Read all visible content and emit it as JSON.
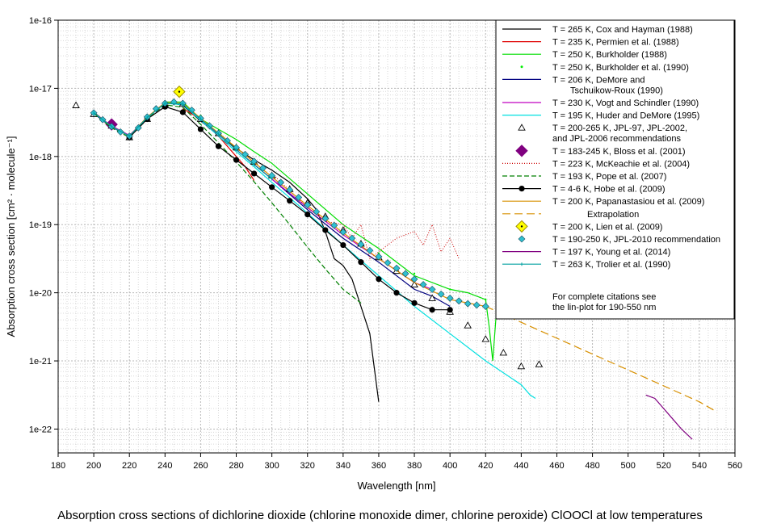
{
  "chart_data": {
    "type": "line",
    "title": "",
    "xlabel": "Wavelength [nm]",
    "ylabel": "Absorption cross section [cm² · molecule⁻¹]",
    "xlim": [
      180,
      560
    ],
    "ylim_log10": [
      -22.35,
      -16
    ],
    "y_scale": "log",
    "x_ticks": [
      180,
      200,
      220,
      240,
      260,
      280,
      300,
      320,
      340,
      360,
      380,
      400,
      420,
      440,
      460,
      480,
      500,
      520,
      540,
      560
    ],
    "x_tick_labels": [
      "180",
      "200",
      "220",
      "240",
      "260",
      "280",
      "300",
      "320",
      "340",
      "360",
      "380",
      "400",
      "420",
      "440",
      "460",
      "480",
      "500",
      "520",
      "540",
      "560"
    ],
    "y_ticks_log10": [
      -16,
      -17,
      -18,
      -19,
      -20,
      -21,
      -22
    ],
    "y_tick_labels": [
      "1e-16",
      "1e-17",
      "1e-18",
      "1e-19",
      "1e-20",
      "1e-21",
      "1e-22"
    ],
    "grid": true,
    "legend_position": "top-right",
    "caption": "Absorption cross sections of dichlorine dioxide (chlorine  monoxide dimer, chlorine peroxide) ClOOCl at low temperatures",
    "legend_footnote": [
      "For complete citations see",
      "the lin-plot for 190-550 nm"
    ],
    "series": [
      {
        "name": "T = 265 K, Cox and Hayman (1988)",
        "name2": "",
        "color": "#000000",
        "style": "solid",
        "marker": "none",
        "x": [
          200,
          210,
          220,
          230,
          240,
          245,
          250,
          260,
          270,
          280,
          290,
          300,
          310,
          320,
          325,
          330,
          335,
          340,
          345,
          350,
          355,
          360
        ],
        "log10": [
          -17.35,
          -17.56,
          -17.7,
          -17.42,
          -17.22,
          -17.22,
          -17.25,
          -17.48,
          -17.68,
          -17.88,
          -18.05,
          -18.2,
          -18.38,
          -18.62,
          -18.78,
          -19.1,
          -19.5,
          -19.6,
          -19.8,
          -20.2,
          -20.6,
          -21.6
        ]
      },
      {
        "name": "T = 235 K, Permien et al. (1988)",
        "name2": "",
        "color": "#e00000",
        "style": "solid",
        "marker": "none",
        "x": [
          250,
          260,
          270,
          280,
          285,
          290
        ],
        "log10": [
          -17.3,
          -17.45,
          -17.7,
          -18.0,
          -18.15,
          -18.35
        ]
      },
      {
        "name": "T = 250 K, Burkholder (1988)",
        "name2": "",
        "color": "#00dd00",
        "style": "solid",
        "marker": "none",
        "x": [
          240,
          250,
          260,
          270,
          280,
          290,
          300,
          320,
          340,
          360,
          380,
          400,
          410,
          420,
          422,
          424,
          426
        ],
        "log10": [
          -17.2,
          -17.2,
          -17.45,
          -17.6,
          -17.75,
          -17.93,
          -18.1,
          -18.55,
          -19.0,
          -19.35,
          -19.75,
          -19.95,
          -20.0,
          -20.1,
          -20.5,
          -21.0,
          -20.3
        ]
      },
      {
        "name": "T = 250 K, Burkholder et al. (1990)",
        "name2": "",
        "color": "#00ee00",
        "style": "dots",
        "marker": "none",
        "x": [
          200,
          210,
          220,
          230,
          240,
          250,
          260,
          270,
          280,
          290,
          300,
          320,
          340,
          360,
          380,
          400,
          420
        ],
        "log10": [
          -17.35,
          -17.55,
          -17.68,
          -17.42,
          -17.22,
          -17.22,
          -17.4,
          -17.63,
          -17.86,
          -18.08,
          -18.28,
          -18.7,
          -19.08,
          -19.42,
          -19.72,
          -19.95,
          -20.1
        ]
      },
      {
        "name": "T = 206 K, DeMore and",
        "name2": "Tschuikow-Roux (1990)",
        "color": "#000080",
        "style": "solid",
        "marker": "none",
        "x": [
          200,
          210,
          220,
          230,
          240,
          250,
          260,
          270,
          280,
          290,
          300,
          320,
          340,
          360,
          380,
          390,
          400
        ],
        "log10": [
          -17.37,
          -17.57,
          -17.7,
          -17.43,
          -17.21,
          -17.23,
          -17.45,
          -17.67,
          -17.9,
          -18.12,
          -18.33,
          -18.78,
          -19.2,
          -19.55,
          -19.95,
          -20.05,
          -20.2
        ]
      },
      {
        "name": "T = 230 K, Vogt and Schindler (1990)",
        "name2": "",
        "color": "#c000c0",
        "style": "solid",
        "marker": "none",
        "x": [
          200,
          210,
          220,
          230,
          240,
          250,
          260,
          280,
          300,
          320,
          340,
          360,
          380,
          390
        ],
        "log10": [
          -17.36,
          -17.55,
          -17.69,
          -17.43,
          -17.22,
          -17.23,
          -17.45,
          -17.9,
          -18.33,
          -18.75,
          -19.15,
          -19.5,
          -19.85,
          -19.95
        ]
      },
      {
        "name": "T = 195 K, Huder and DeMore (1995)",
        "name2": "",
        "color": "#00e0e0",
        "style": "solid",
        "marker": "none",
        "x": [
          200,
          210,
          220,
          230,
          240,
          250,
          260,
          270,
          280,
          290,
          300,
          320,
          340,
          360,
          380,
          400,
          420,
          440,
          445,
          448
        ],
        "log10": [
          -17.36,
          -17.56,
          -17.7,
          -17.43,
          -17.22,
          -17.24,
          -17.47,
          -17.7,
          -17.93,
          -18.15,
          -18.38,
          -18.83,
          -19.3,
          -19.75,
          -20.2,
          -20.6,
          -21.0,
          -21.35,
          -21.5,
          -21.55
        ]
      },
      {
        "name": "T = 200-265 K, JPL-97, JPL-2002,",
        "name2": "and JPL-2006 recommendations",
        "color": "#000000",
        "style": "markers",
        "marker": "triangle",
        "x": [
          190,
          200,
          210,
          220,
          230,
          240,
          250,
          260,
          270,
          280,
          290,
          300,
          310,
          320,
          330,
          340,
          350,
          360,
          370,
          380,
          390,
          400,
          410,
          420,
          430,
          440,
          450
        ],
        "log10": [
          -17.25,
          -17.38,
          -17.55,
          -17.72,
          -17.45,
          -17.23,
          -17.23,
          -17.45,
          -17.66,
          -17.87,
          -18.08,
          -18.28,
          -18.48,
          -18.68,
          -18.88,
          -19.08,
          -19.28,
          -19.48,
          -19.68,
          -19.88,
          -20.08,
          -20.28,
          -20.48,
          -20.68,
          -20.88,
          -21.08,
          -21.05
        ]
      },
      {
        "name": "T = 183-245 K, Bloss et al. (2001)",
        "name2": "",
        "color": "#800080",
        "style": "markers",
        "marker": "diamond-large",
        "x": [
          210
        ],
        "log10": [
          -17.53
        ]
      },
      {
        "name": "T = 223 K, McKeachie et al. (2004)",
        "name2": "",
        "color": "#cc0000",
        "style": "dotted",
        "marker": "none",
        "x": [
          300,
          320,
          330,
          340,
          345,
          350,
          355,
          360,
          370,
          380,
          385,
          390,
          395,
          400,
          405
        ],
        "log10": [
          -18.25,
          -18.75,
          -18.95,
          -19.0,
          -19.2,
          -19.0,
          -19.5,
          -19.4,
          -19.2,
          -19.1,
          -19.3,
          -19.0,
          -19.4,
          -19.2,
          -19.5
        ]
      },
      {
        "name": "T = 193 K, Pope et al. (2007)",
        "name2": "",
        "color": "#008000",
        "style": "dashed",
        "marker": "none",
        "x": [
          200,
          210,
          220,
          230,
          240,
          250,
          260,
          270,
          280,
          290,
          300,
          310,
          320,
          330,
          340,
          350
        ],
        "log10": [
          -17.37,
          -17.58,
          -17.72,
          -17.45,
          -17.24,
          -17.28,
          -17.53,
          -17.8,
          -18.08,
          -18.37,
          -18.68,
          -19.0,
          -19.33,
          -19.65,
          -19.95,
          -20.15
        ]
      },
      {
        "name": "T = 4-6 K, Hobe et al. (2009)",
        "name2": "",
        "color": "#000000",
        "style": "solid",
        "marker": "circle",
        "x": [
          220,
          230,
          240,
          250,
          260,
          270,
          280,
          290,
          300,
          310,
          320,
          330,
          340,
          350,
          360,
          370,
          380,
          390,
          400
        ],
        "log10": [
          -17.72,
          -17.45,
          -17.27,
          -17.35,
          -17.6,
          -17.85,
          -18.05,
          -18.25,
          -18.45,
          -18.65,
          -18.85,
          -19.08,
          -19.3,
          -19.55,
          -19.8,
          -20.0,
          -20.15,
          -20.25,
          -20.25
        ]
      },
      {
        "name": "T = 200 K, Papanastasiou et al. (2009)",
        "name2": "",
        "color": "#d89000",
        "style": "solid",
        "marker": "none",
        "x": [
          200,
          210,
          220,
          230,
          240,
          250,
          260,
          280,
          300,
          320,
          340,
          360,
          380,
          400,
          420
        ],
        "log10": [
          -17.36,
          -17.56,
          -17.7,
          -17.42,
          -17.21,
          -17.22,
          -17.44,
          -17.87,
          -18.3,
          -18.72,
          -19.12,
          -19.5,
          -19.85,
          -20.1,
          -20.2
        ]
      },
      {
        "name": "Extrapolation",
        "name2": "",
        "color": "#d89000",
        "style": "dashed-long",
        "marker": "none",
        "x": [
          420,
          450,
          480,
          510,
          540,
          550
        ],
        "log10": [
          -20.2,
          -20.55,
          -20.9,
          -21.25,
          -21.6,
          -21.75
        ]
      },
      {
        "name": "T = 200 K, Lien et al. (2009)",
        "name2": "",
        "color": "#e6e600",
        "style": "markers",
        "marker": "diamond-yellow",
        "x": [
          248
        ],
        "log10": [
          -17.05
        ]
      },
      {
        "name": "T = 190-250 K, JPL-2010 recommendation",
        "name2": "",
        "color": "#30c0d0",
        "style": "markers",
        "marker": "diamond-small",
        "x": [
          200,
          205,
          210,
          215,
          220,
          225,
          230,
          235,
          240,
          245,
          250,
          255,
          260,
          265,
          270,
          275,
          280,
          285,
          290,
          295,
          300,
          305,
          310,
          315,
          320,
          325,
          330,
          335,
          340,
          345,
          350,
          355,
          360,
          365,
          370,
          375,
          380,
          385,
          390,
          395,
          400,
          405,
          410,
          415,
          420
        ],
        "log10": [
          -17.36,
          -17.46,
          -17.56,
          -17.64,
          -17.7,
          -17.58,
          -17.42,
          -17.3,
          -17.22,
          -17.2,
          -17.22,
          -17.32,
          -17.44,
          -17.55,
          -17.66,
          -17.77,
          -17.87,
          -17.97,
          -18.07,
          -18.17,
          -18.28,
          -18.38,
          -18.49,
          -18.6,
          -18.71,
          -18.81,
          -18.91,
          -19.01,
          -19.11,
          -19.2,
          -19.29,
          -19.38,
          -19.47,
          -19.56,
          -19.64,
          -19.72,
          -19.8,
          -19.88,
          -19.95,
          -20.02,
          -20.08,
          -20.12,
          -20.16,
          -20.18,
          -20.2
        ]
      },
      {
        "name": "T = 197 K, Young et al. (2014)",
        "name2": "",
        "color": "#800080",
        "style": "solid",
        "marker": "none",
        "x": [
          510,
          515,
          520,
          525,
          530,
          536
        ],
        "log10": [
          -21.5,
          -21.55,
          -21.7,
          -21.85,
          -22.0,
          -22.15
        ]
      },
      {
        "name": "T = 263 K, Trolier et al. (1990)",
        "name2": "",
        "color": "#00a0a0",
        "style": "solid",
        "marker": "tick",
        "x": [
          200,
          210,
          220,
          230,
          240,
          250,
          260,
          270,
          280,
          290,
          300
        ],
        "log10": [
          -17.36,
          -17.56,
          -17.7,
          -17.43,
          -17.22,
          -17.23,
          -17.45,
          -17.67,
          -17.9,
          -18.12,
          -18.33
        ]
      }
    ]
  }
}
